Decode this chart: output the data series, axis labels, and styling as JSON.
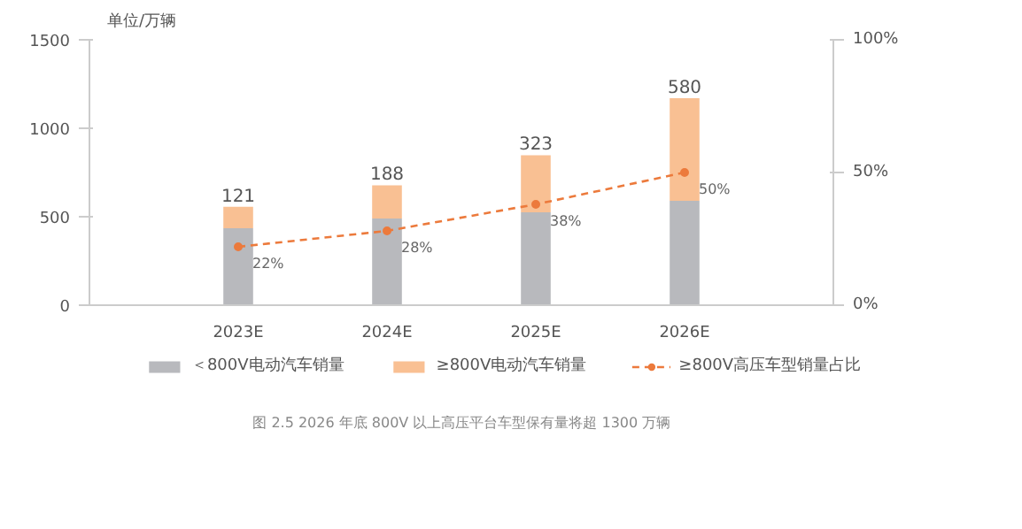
{
  "chart_data": {
    "type": "bar",
    "stacked": true,
    "categories": [
      "2023E",
      "2024E",
      "2025E",
      "2026E"
    ],
    "ylabel": "单位/万辆",
    "series": [
      {
        "name": "＜800V电动汽车销量",
        "color": "#b8b9bd",
        "values": [
          435,
          490,
          525,
          590
        ]
      },
      {
        "name": "≥800V电动汽车销量",
        "color": "#f9c093",
        "values": [
          121,
          188,
          323,
          580
        ],
        "value_labels": [
          "121",
          "188",
          "323",
          "580"
        ]
      },
      {
        "name": "≥800V高压车型销量占比",
        "type": "line",
        "axis": "y2",
        "color": "#ec7a3c",
        "line_style": "dashed",
        "marker": "circle",
        "values": [
          22,
          28,
          38,
          50
        ],
        "value_labels": [
          "22%",
          "28%",
          "38%",
          "50%"
        ]
      }
    ],
    "ylim": [
      0,
      1500
    ],
    "yticks": [
      0,
      500,
      1000,
      1500
    ],
    "y2lim": [
      0,
      100
    ],
    "y2ticks": [
      {
        "value": 0,
        "label": "0%"
      },
      {
        "value": 50,
        "label": "50%"
      },
      {
        "value": 100,
        "label": "100%"
      }
    ],
    "grid": false,
    "legend": "bottom",
    "annotations": [
      "图 2.5 2026 年底 800V 以上高压平台车型保有量将超 1300 万辆"
    ]
  }
}
